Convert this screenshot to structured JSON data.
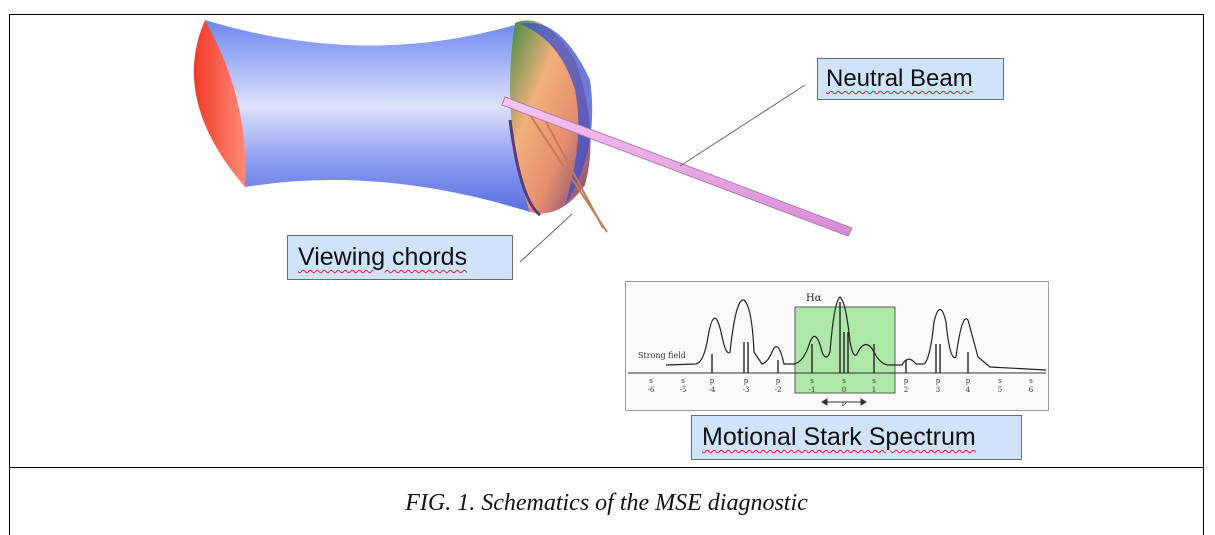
{
  "labels": {
    "neutral_beam": "Neutral Beam",
    "viewing_chords": "Viewing chords",
    "motional_stark": "Motional Stark Spectrum"
  },
  "spectrum": {
    "halpha_label": "Hα",
    "strong_field_label": "Strong field",
    "sigma_mark": "s",
    "pi_mark": "p",
    "tick_numbers": [
      "-6",
      "-5",
      "-4",
      "-3",
      "-2",
      "-1",
      "0",
      "1",
      "2",
      "3",
      "4",
      "5",
      "6"
    ],
    "axis_label": "ν",
    "highlight_color": "#9fe59a"
  },
  "caption": "FIG. 1. Schematics of the MSE diagnostic"
}
